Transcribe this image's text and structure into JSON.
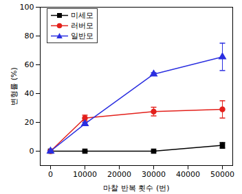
{
  "chart_data": {
    "type": "line",
    "x_label": "마찰 반복 횟수 (번)",
    "y_label": "변형률 (%)",
    "x": [
      0,
      10000,
      30000,
      50000
    ],
    "xlim": [
      -3000,
      53000
    ],
    "xticks": [
      0,
      10000,
      20000,
      30000,
      40000,
      50000
    ],
    "ylim": [
      -10,
      100
    ],
    "yticks": [
      0,
      20,
      40,
      60,
      80,
      100
    ],
    "legend": "upper left",
    "series": [
      {
        "name": "미세모",
        "color": "#000000",
        "marker": "square",
        "values": [
          0,
          0,
          0,
          4
        ],
        "errors": [
          0,
          0,
          0,
          2
        ]
      },
      {
        "name": "러버모",
        "color": "#e3201b",
        "marker": "circle",
        "values": [
          0,
          23,
          27.5,
          29
        ],
        "errors": [
          0,
          2,
          3,
          6
        ]
      },
      {
        "name": "일반모",
        "color": "#2a2ee0",
        "marker": "triangle",
        "values": [
          0,
          19,
          53.5,
          65.5
        ],
        "errors": [
          0,
          1,
          1,
          9.5
        ]
      }
    ]
  }
}
